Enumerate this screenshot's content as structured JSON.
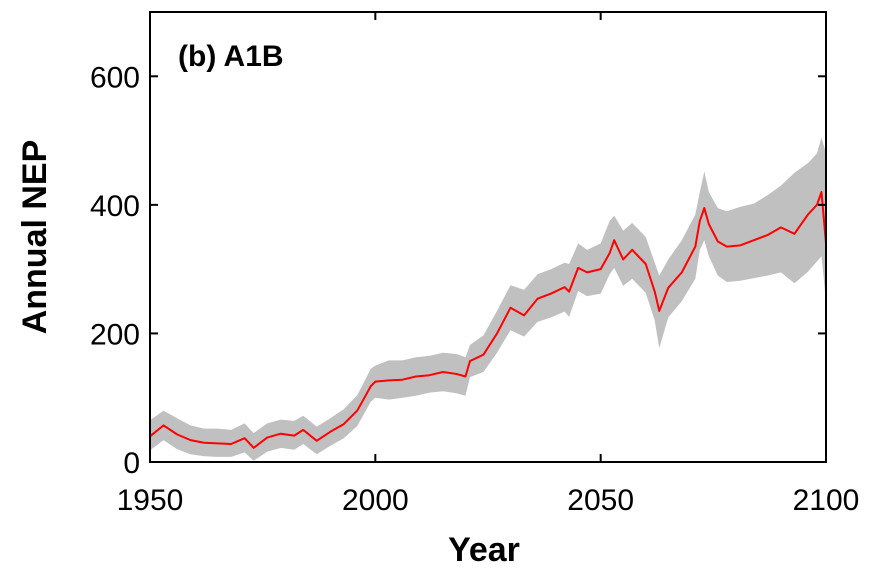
{
  "chart_data": {
    "type": "line",
    "title": "(b) A1B",
    "xlabel": "Year",
    "ylabel": "Annual NEP",
    "xlim": [
      1950,
      2100
    ],
    "ylim": [
      0,
      700
    ],
    "xticks": [
      1950,
      2000,
      2050,
      2100
    ],
    "yticks": [
      0,
      200,
      400,
      600
    ],
    "grid": false,
    "legend": "none",
    "colors": {
      "line": "#ff0000",
      "band": "#c0c0c0",
      "axes": "#000000"
    },
    "series": [
      {
        "x": [
          1950,
          1953,
          1956,
          1959,
          1962,
          1965,
          1968,
          1971,
          1973,
          1976,
          1979,
          1982,
          1984,
          1987,
          1990,
          1993,
          1996,
          1999,
          2000,
          2003,
          2006,
          2009,
          2012,
          2015,
          2018,
          2020,
          2021,
          2024,
          2027,
          2030,
          2033,
          2036,
          2039,
          2042,
          2043,
          2045,
          2047,
          2050,
          2052,
          2053,
          2055,
          2057,
          2060,
          2062,
          2063,
          2065,
          2068,
          2071,
          2072,
          2073,
          2074,
          2076,
          2078,
          2081,
          2084,
          2087,
          2090,
          2093,
          2096,
          2098,
          2099,
          2100
        ],
        "y": [
          40,
          57,
          43,
          34,
          30,
          29,
          28,
          37,
          22,
          38,
          44,
          41,
          50,
          33,
          47,
          59,
          80,
          118,
          125,
          127,
          128,
          133,
          135,
          140,
          137,
          133,
          157,
          167,
          200,
          240,
          228,
          254,
          262,
          272,
          265,
          302,
          295,
          300,
          325,
          345,
          315,
          330,
          308,
          265,
          235,
          271,
          295,
          335,
          375,
          395,
          370,
          343,
          335,
          337,
          345,
          353,
          365,
          355,
          385,
          400,
          420,
          340
        ]
      }
    ],
    "band": {
      "x": [
        1950,
        1953,
        1956,
        1959,
        1962,
        1965,
        1968,
        1971,
        1973,
        1976,
        1979,
        1982,
        1984,
        1987,
        1990,
        1993,
        1996,
        1999,
        2000,
        2003,
        2006,
        2009,
        2012,
        2015,
        2018,
        2020,
        2021,
        2024,
        2027,
        2030,
        2033,
        2036,
        2039,
        2042,
        2043,
        2045,
        2047,
        2050,
        2052,
        2053,
        2055,
        2057,
        2060,
        2062,
        2063,
        2065,
        2068,
        2071,
        2072,
        2073,
        2074,
        2076,
        2078,
        2081,
        2084,
        2087,
        2090,
        2093,
        2096,
        2098,
        2099,
        2100
      ],
      "upper": [
        65,
        80,
        68,
        57,
        52,
        52,
        50,
        60,
        45,
        60,
        66,
        64,
        72,
        55,
        68,
        82,
        104,
        145,
        150,
        158,
        158,
        163,
        165,
        170,
        168,
        163,
        182,
        197,
        235,
        275,
        268,
        292,
        300,
        310,
        308,
        340,
        330,
        340,
        375,
        383,
        360,
        372,
        350,
        310,
        290,
        315,
        345,
        385,
        420,
        452,
        420,
        395,
        390,
        397,
        402,
        415,
        430,
        450,
        465,
        480,
        505,
        480
      ],
      "lower": [
        18,
        34,
        20,
        12,
        9,
        8,
        8,
        15,
        2,
        16,
        22,
        19,
        28,
        12,
        25,
        37,
        56,
        94,
        100,
        97,
        100,
        103,
        108,
        110,
        107,
        103,
        132,
        140,
        170,
        205,
        195,
        218,
        225,
        234,
        226,
        266,
        258,
        262,
        292,
        302,
        274,
        285,
        263,
        220,
        177,
        225,
        250,
        285,
        330,
        345,
        320,
        290,
        280,
        282,
        286,
        290,
        295,
        278,
        296,
        312,
        320,
        250
      ]
    }
  }
}
